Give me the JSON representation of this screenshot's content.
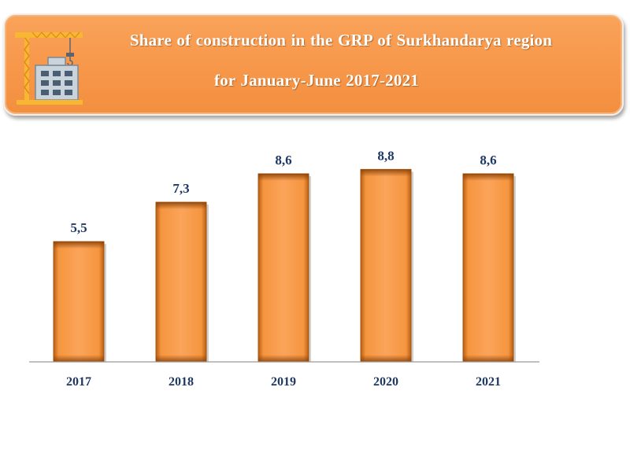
{
  "header": {
    "title_line_1": "Share of construction in the GRP of Surkhandarya region",
    "title_line_2": "for January-June 2017-2021",
    "icon": "construction-crane-building-icon"
  },
  "colors": {
    "banner": "#f7974a",
    "bar": "#f89c4e",
    "bar_edge": "#b85e14",
    "label_text": "#1f3864",
    "axis": "#9a9a9a"
  },
  "chart_data": {
    "type": "bar",
    "title": "Share of construction in the GRP of Surkhandarya region for January-June 2017-2021",
    "categories": [
      "2017",
      "2018",
      "2019",
      "2020",
      "2021"
    ],
    "values": [
      5.5,
      7.3,
      8.6,
      8.8,
      8.6
    ],
    "value_labels": [
      "5,5",
      "7,3",
      "8,6",
      "8,8",
      "8,6"
    ],
    "xlabel": "",
    "ylabel": "",
    "ylim": [
      0,
      10
    ],
    "grid": false,
    "legend": "none"
  }
}
